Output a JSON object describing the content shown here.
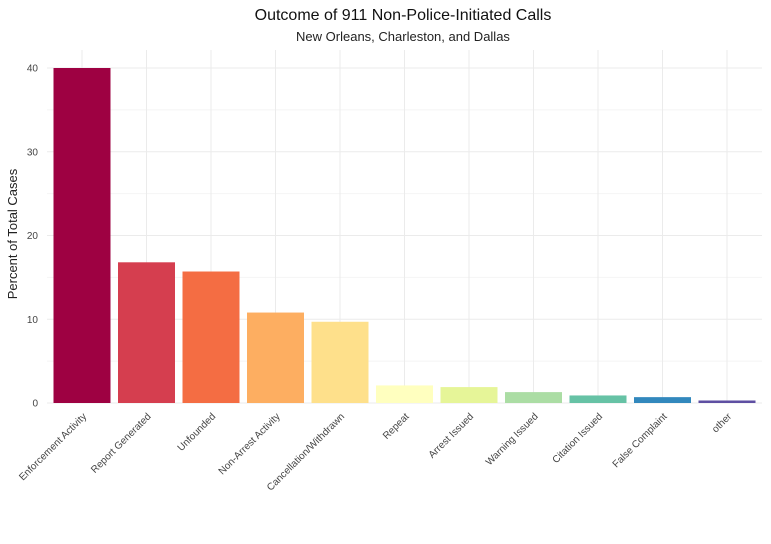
{
  "chart_data": {
    "type": "bar",
    "title": "Outcome of 911 Non-Police-Initiated Calls",
    "subtitle": "New Orleans, Charleston, and Dallas",
    "xlabel": "",
    "ylabel": "Percent of Total Cases",
    "ylim": [
      0,
      41
    ],
    "yticks": [
      "0",
      "10",
      "20",
      "30",
      "40"
    ],
    "grid": true,
    "categories": [
      "Enforcement Activity",
      "Report Generated",
      "Unfounded",
      "Non-Arrest Activity",
      "Cancellation/Withdrawn",
      "Repeat",
      "Arrest Issued",
      "Warning Issued",
      "Citation Issued",
      "False Complaint",
      "other"
    ],
    "values": [
      40.0,
      16.8,
      15.7,
      10.8,
      9.7,
      2.1,
      1.9,
      1.3,
      0.9,
      0.7,
      0.3
    ],
    "colors": [
      "#9E0142",
      "#D53E4F",
      "#F46D43",
      "#FDAE61",
      "#FEE08B",
      "#FFFFBF",
      "#E6F598",
      "#ABDDA4",
      "#66C2A5",
      "#3288BD",
      "#5E4FA2"
    ]
  }
}
